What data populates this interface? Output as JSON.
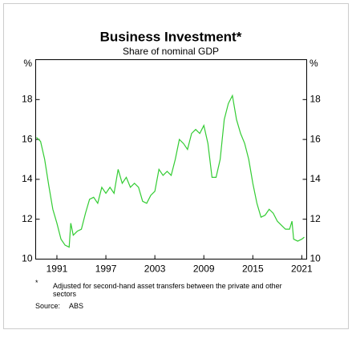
{
  "chart_data": {
    "type": "line",
    "title": "Business Investment*",
    "subtitle": "Share of nominal GDP",
    "ylabel": "%",
    "y2label": "%",
    "x": [
      1988.5,
      1989,
      1989.5,
      1990,
      1990.5,
      1991,
      1991.5,
      1992,
      1992.5,
      1992.7,
      1993,
      1993.5,
      1994,
      1994.5,
      1995,
      1995.5,
      1996,
      1996.5,
      1997,
      1997.5,
      1998,
      1998.5,
      1999,
      1999.5,
      2000,
      2000.5,
      2001,
      2001.5,
      2002,
      2002.5,
      2003,
      2003.5,
      2004,
      2004.5,
      2005,
      2005.5,
      2006,
      2006.5,
      2007,
      2007.5,
      2008,
      2008.5,
      2009,
      2009.5,
      2010,
      2010.5,
      2011,
      2011.5,
      2012,
      2012.5,
      2013,
      2013.5,
      2014,
      2014.5,
      2015,
      2015.5,
      2016,
      2016.5,
      2017,
      2017.5,
      2018,
      2018.5,
      2019,
      2019.5,
      2019.8,
      2020,
      2020.5,
      2021,
      2021.3
    ],
    "series": [
      {
        "name": "Business investment",
        "color": "#33cc33",
        "values": [
          16.1,
          15.9,
          15.0,
          13.7,
          12.5,
          11.8,
          11.0,
          10.7,
          10.6,
          11.8,
          11.2,
          11.4,
          11.5,
          12.3,
          13.0,
          13.1,
          12.8,
          13.6,
          13.3,
          13.6,
          13.3,
          14.5,
          13.8,
          14.1,
          13.6,
          13.8,
          13.6,
          12.9,
          12.8,
          13.2,
          13.4,
          14.5,
          14.2,
          14.4,
          14.2,
          15.0,
          16.0,
          15.8,
          15.5,
          16.3,
          16.5,
          16.3,
          16.7,
          15.8,
          14.1,
          14.1,
          15.0,
          17.0,
          17.8,
          18.2,
          17.0,
          16.3,
          15.8,
          15.0,
          13.8,
          12.8,
          12.1,
          12.2,
          12.5,
          12.3,
          11.9,
          11.7,
          11.5,
          11.5,
          11.9,
          11.0,
          10.9,
          11.0,
          11.1
        ]
      }
    ],
    "xlim": [
      1988.4,
      2021.6
    ],
    "xticks": [
      1991,
      1997,
      2003,
      2009,
      2015,
      2021
    ],
    "ylim": [
      10,
      20
    ],
    "yticks": [
      10,
      12,
      14,
      16,
      18
    ],
    "y2lim": [
      10,
      20
    ],
    "y2ticks": [
      10,
      12,
      14,
      16,
      18
    ],
    "footnote_marker": "*",
    "footnote": "Adjusted for second-hand asset transfers between the private and other sectors",
    "source_label": "Source:",
    "source": "ABS"
  }
}
